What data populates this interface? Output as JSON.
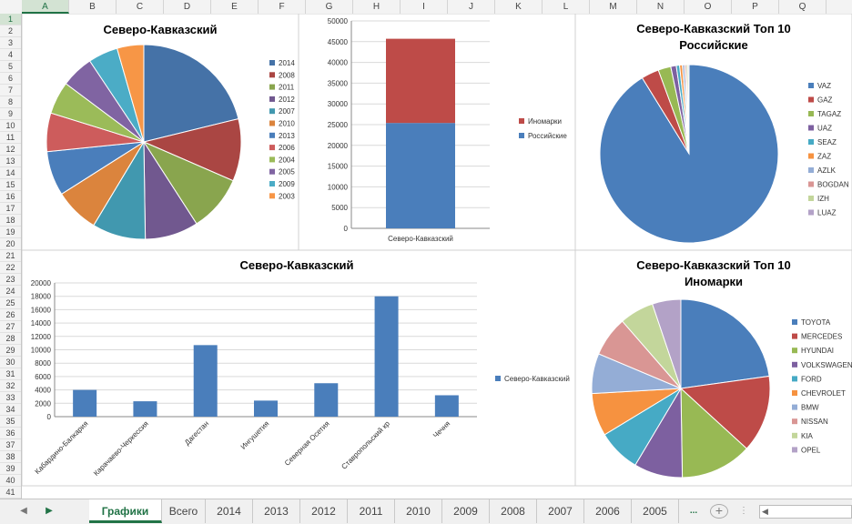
{
  "sheet": {
    "columns": [
      "A",
      "B",
      "C",
      "D",
      "E",
      "F",
      "G",
      "H",
      "I",
      "J",
      "K",
      "L",
      "M",
      "N",
      "O",
      "P",
      "Q"
    ],
    "rows": [
      "1",
      "2",
      "3",
      "4",
      "5",
      "6",
      "7",
      "8",
      "9",
      "10",
      "11",
      "12",
      "13",
      "14",
      "15",
      "16",
      "17",
      "18",
      "19",
      "20",
      "21",
      "22",
      "23",
      "24",
      "25",
      "26",
      "27",
      "28",
      "29",
      "30",
      "31",
      "32",
      "33",
      "34",
      "35",
      "36",
      "37",
      "38",
      "39",
      "40",
      "41"
    ]
  },
  "tabs": {
    "items": [
      "Графики",
      "Всего",
      "2014",
      "2013",
      "2012",
      "2011",
      "2010",
      "2009",
      "2008",
      "2007",
      "2006",
      "2005"
    ],
    "more": "...",
    "add": "+",
    "prev": "◀",
    "next": "▶"
  },
  "chart_data": [
    {
      "type": "pie",
      "title": "Северо-Кавказский",
      "legend_position": "right",
      "labels": [
        "2014",
        "2008",
        "2011",
        "2012",
        "2007",
        "2010",
        "2013",
        "2006",
        "2004",
        "2005",
        "2009",
        "2003"
      ],
      "values": [
        21.5,
        10.5,
        9.5,
        9.0,
        9.0,
        7.5,
        7.5,
        6.5,
        5.5,
        5.5,
        5.0,
        4.5
      ],
      "colors": [
        "#4572a7",
        "#aa4643",
        "#89a54e",
        "#71588f",
        "#4198af",
        "#db843d",
        "#4a7ebb",
        "#cd5c5c",
        "#9bbb59",
        "#8064a2",
        "#4bacc6",
        "#f79646"
      ]
    },
    {
      "type": "bar",
      "stacked": true,
      "categories": [
        "Северо-Кавказский"
      ],
      "series": [
        {
          "name": "Российские",
          "values": [
            25400
          ],
          "color": "#4a7ebb"
        },
        {
          "name": "Иномарки",
          "values": [
            20300
          ],
          "color": "#be4b48"
        }
      ],
      "ylim": [
        0,
        50000
      ],
      "yticks": [
        0,
        5000,
        10000,
        15000,
        20000,
        25000,
        30000,
        35000,
        40000,
        45000,
        50000
      ],
      "legend_position": "right",
      "gridlines": true
    },
    {
      "type": "pie",
      "title": "Северо-Кавказский Топ 10 Российские",
      "legend_position": "right",
      "labels": [
        "VAZ",
        "GAZ",
        "TAGAZ",
        "UAZ",
        "SEAZ",
        "ZAZ",
        "AZLK",
        "BOGDAN",
        "IZH",
        "LUAZ"
      ],
      "values": [
        91.2,
        3.2,
        2.3,
        1.0,
        0.6,
        0.5,
        0.4,
        0.3,
        0.3,
        0.2
      ],
      "colors": [
        "#4a7ebb",
        "#be4b48",
        "#98b954",
        "#7d60a0",
        "#46aac5",
        "#f69240",
        "#94add6",
        "#d99694",
        "#c3d69b",
        "#b3a2c7"
      ]
    },
    {
      "type": "bar",
      "title": "Северо-Кавказский",
      "categories": [
        "Кабардино-Балкария",
        "Карачаево-Черкессия",
        "Дагестан",
        "Ингушетия",
        "Северная Осетия",
        "Ставропольский кр",
        "Чечня"
      ],
      "series": [
        {
          "name": "Северо-Кавказский",
          "values": [
            4000,
            2300,
            10700,
            2400,
            5000,
            18000,
            3200
          ],
          "color": "#4a7ebb"
        }
      ],
      "ylim": [
        0,
        20000
      ],
      "yticks": [
        0,
        2000,
        4000,
        6000,
        8000,
        10000,
        12000,
        14000,
        16000,
        18000,
        20000
      ],
      "legend_position": "right",
      "gridlines": true
    },
    {
      "type": "pie",
      "title": "Северо-Кавказский Топ 10 Иномарки",
      "legend_position": "right",
      "labels": [
        "TOYOTA",
        "MERCEDES",
        "HYUNDAI",
        "VOLKSWAGEN",
        "FORD",
        "CHEVROLET",
        "BMW",
        "NISSAN",
        "KIA",
        "OPEL"
      ],
      "values": [
        22.0,
        13.5,
        12.5,
        8.5,
        7.5,
        7.5,
        7.0,
        7.0,
        6.0,
        5.0
      ],
      "colors": [
        "#4a7ebb",
        "#be4b48",
        "#98b954",
        "#7d60a0",
        "#46aac5",
        "#f69240",
        "#94add6",
        "#d99694",
        "#c3d69b",
        "#b3a2c7"
      ]
    }
  ]
}
